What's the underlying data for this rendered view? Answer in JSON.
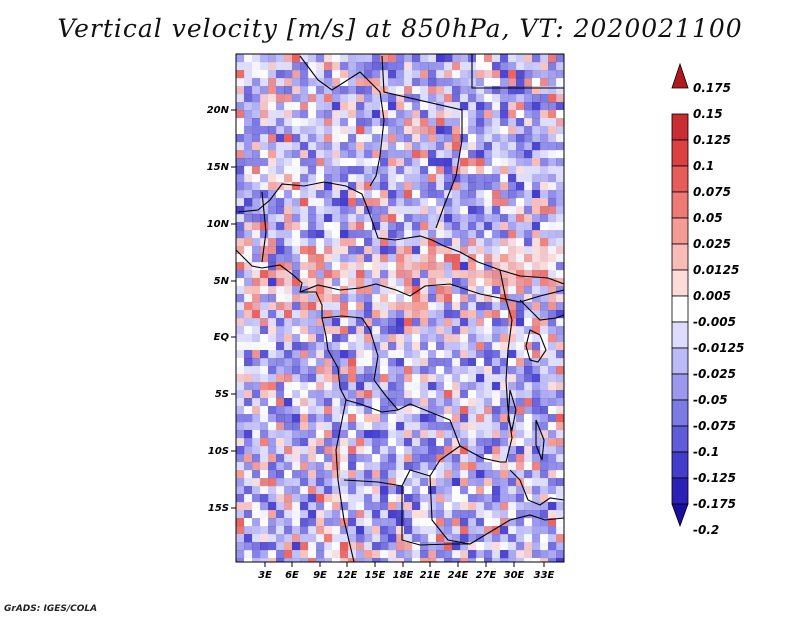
{
  "title": "Vertical velocity [m/s] at 850hPa, VT: 2020021100",
  "footer": "GrADS: IGES/COLA",
  "map": {
    "lat_labels": [
      "20N",
      "15N",
      "10N",
      "5N",
      "EQ",
      "5S",
      "10S",
      "15S"
    ],
    "lon_labels": [
      "3E",
      "6E",
      "9E",
      "12E",
      "15E",
      "18E",
      "21E",
      "24E",
      "27E",
      "30E",
      "33E"
    ]
  },
  "colorbar": {
    "levels": [
      "0.175",
      "0.15",
      "0.125",
      "0.1",
      "0.075",
      "0.05",
      "0.025",
      "0.0125",
      "0.005",
      "-0.005",
      "-0.0125",
      "-0.025",
      "-0.05",
      "-0.075",
      "-0.1",
      "-0.125",
      "-0.175",
      "-0.2"
    ],
    "colors": [
      "#b2191d",
      "#c92d2f",
      "#dc4142",
      "#e65d5a",
      "#ee7a74",
      "#f39c95",
      "#f8bcb6",
      "#fcdcd8",
      "#ffffff",
      "#dddcfc",
      "#bcbaf6",
      "#9b98ee",
      "#7e7ae4",
      "#605bd8",
      "#433ccb",
      "#2b21b8",
      "#1a0ea0"
    ]
  }
}
